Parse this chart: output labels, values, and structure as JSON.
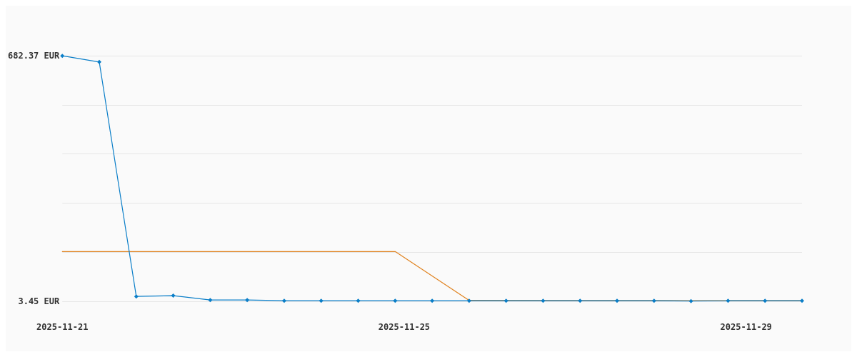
{
  "chart_data": {
    "type": "line",
    "x": [
      "2025-11-21T00:00",
      "2025-11-21T10:23",
      "2025-11-21T20:46",
      "2025-11-22T07:09",
      "2025-11-22T17:32",
      "2025-11-23T03:55",
      "2025-11-23T14:18",
      "2025-11-24T00:41",
      "2025-11-24T11:05",
      "2025-11-24T21:28",
      "2025-11-25T07:51",
      "2025-11-25T18:14",
      "2025-11-26T04:37",
      "2025-11-26T15:00",
      "2025-11-27T01:23",
      "2025-11-27T11:46",
      "2025-11-27T22:09",
      "2025-11-28T08:32",
      "2025-11-28T18:56",
      "2025-11-29T05:19",
      "2025-11-29T15:42"
    ],
    "series": [
      {
        "color": "#0a7ec8",
        "marker": "diamond",
        "values": [
          682,
          665,
          17,
          19,
          7,
          7,
          5,
          5,
          5,
          5,
          5,
          5,
          5,
          5,
          5,
          5,
          5,
          4,
          5,
          5,
          5
        ]
      },
      {
        "color": "#e0821e",
        "marker": "none",
        "x": [
          "2025-11-21T00:00",
          "2025-11-24T21:28",
          "2025-11-25T18:14",
          "2025-11-29T15:42"
        ],
        "values": [
          141,
          141,
          6,
          5
        ]
      }
    ],
    "xlim": [
      "2025-11-21T00:00",
      "2025-11-29T15:42"
    ],
    "xticks": [
      "2025-11-21",
      "2025-11-25",
      "2025-11-29"
    ],
    "ylim": [
      3.45,
      682.37
    ],
    "yticks": [
      {
        "value": 3.45,
        "label": "3.45 EUR"
      },
      {
        "value": 139.23,
        "label": null
      },
      {
        "value": 275.02,
        "label": null
      },
      {
        "value": 410.8,
        "label": null
      },
      {
        "value": 546.59,
        "label": null
      },
      {
        "value": 682.37,
        "label": "682.37 EUR"
      }
    ],
    "grid": "y",
    "line_style": "solid"
  }
}
